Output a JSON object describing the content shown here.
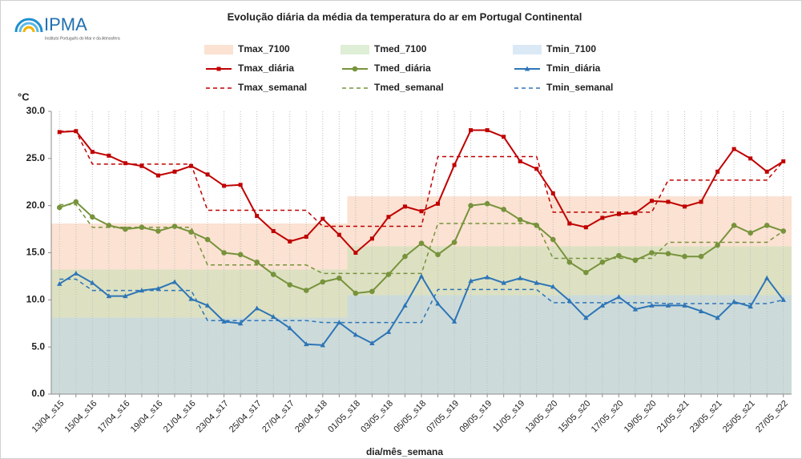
{
  "logo": {
    "name": "IPMA",
    "subtitle": "Instituto Português do Mar e da Atmosfera"
  },
  "chart_data": {
    "type": "line",
    "title": "Evolução diária da média da temperatura do ar em Portugal Continental",
    "y_label": "°C",
    "x_label": "dia/mês_semana",
    "categories": [
      "13/04_s15",
      null,
      "15/04_s16",
      null,
      "17/04_s16",
      null,
      "19/04_s16",
      null,
      "21/04_s16",
      null,
      "23/04_s17",
      null,
      "25/04_s17",
      null,
      "27/04_s17",
      null,
      "29/04_s18",
      null,
      "01/05_s18",
      null,
      "03/05_s18",
      null,
      "05/05_s18",
      null,
      "07/05_s19",
      null,
      "09/05_s19",
      null,
      "11/05_s19",
      null,
      "13/05_s20",
      null,
      "15/05_s20",
      null,
      "17/05_s20",
      null,
      "19/05_s20",
      null,
      "21/05_s21",
      null,
      "23/05_s21",
      null,
      "25/05_s21",
      null,
      "27/05_s22"
    ],
    "ylim": [
      0,
      30
    ],
    "yticks": [
      {
        "value": 0,
        "label": "0.0"
      },
      {
        "value": 5,
        "label": "5.0"
      },
      {
        "value": 10,
        "label": "10.0"
      },
      {
        "value": 15,
        "label": "15.0"
      },
      {
        "value": 20,
        "label": "20.0"
      },
      {
        "value": 25,
        "label": "25.0"
      },
      {
        "value": 30,
        "label": "30.0"
      }
    ],
    "grid": true,
    "series": [
      {
        "name": "Tmax_7100",
        "style": "band",
        "color": "#f8cbad",
        "values": [
          18.1,
          18.1,
          18.1,
          18.1,
          18.1,
          18.1,
          18.1,
          18.1,
          18.1,
          18.1,
          18.1,
          18.1,
          18.1,
          18.1,
          18.1,
          18.1,
          18.1,
          18.1,
          21.0,
          21.0,
          21.0,
          21.0,
          21.0,
          21.0,
          21.0,
          21.0,
          21.0,
          21.0,
          21.0,
          21.0,
          21.0,
          21.0,
          21.0,
          21.0,
          21.0,
          21.0,
          21.0,
          21.0,
          21.0,
          21.0,
          21.0,
          21.0,
          21.0,
          21.0,
          21.0
        ]
      },
      {
        "name": "Tmed_7100",
        "style": "band",
        "color": "#c5e0b4",
        "values": [
          13.2,
          13.2,
          13.2,
          13.2,
          13.2,
          13.2,
          13.2,
          13.2,
          13.2,
          13.2,
          13.2,
          13.2,
          13.2,
          13.2,
          13.2,
          13.2,
          13.2,
          13.2,
          15.7,
          15.7,
          15.7,
          15.7,
          15.7,
          15.7,
          15.7,
          15.7,
          15.7,
          15.7,
          15.7,
          15.7,
          15.7,
          15.7,
          15.7,
          15.7,
          15.7,
          15.7,
          15.7,
          15.7,
          15.7,
          15.7,
          15.7,
          15.7,
          15.7,
          15.7,
          15.7
        ]
      },
      {
        "name": "Tmin_7100",
        "style": "band",
        "color": "#bdd7ee",
        "values": [
          8.1,
          8.1,
          8.1,
          8.1,
          8.1,
          8.1,
          8.1,
          8.1,
          8.1,
          8.1,
          8.1,
          8.1,
          8.1,
          8.1,
          8.1,
          8.1,
          8.1,
          8.1,
          10.5,
          10.5,
          10.5,
          10.5,
          10.5,
          10.5,
          10.5,
          10.5,
          10.5,
          10.5,
          10.5,
          10.5,
          10.5,
          10.5,
          10.5,
          10.5,
          10.5,
          10.5,
          10.5,
          10.5,
          10.5,
          10.5,
          10.5,
          10.5,
          10.5,
          10.5,
          10.5
        ]
      },
      {
        "name": "Tmax_diária",
        "style": "line",
        "marker": "square",
        "color": "#c00000",
        "values": [
          27.8,
          27.9,
          25.7,
          25.3,
          24.5,
          24.2,
          23.2,
          23.6,
          24.2,
          23.3,
          22.1,
          22.2,
          18.9,
          17.3,
          16.2,
          16.7,
          18.6,
          16.9,
          15.0,
          16.5,
          18.8,
          19.9,
          19.4,
          20.2,
          24.3,
          28.0,
          28.0,
          27.3,
          24.7,
          23.9,
          21.3,
          18.1,
          17.7,
          18.7,
          19.1,
          19.2,
          20.5,
          20.4,
          19.9,
          20.4,
          23.6,
          26.0,
          25.0,
          23.6,
          24.7
        ]
      },
      {
        "name": "Tmed_diária",
        "style": "line",
        "marker": "circle",
        "color": "#77933c",
        "values": [
          19.8,
          20.4,
          18.8,
          17.9,
          17.5,
          17.7,
          17.3,
          17.8,
          17.2,
          16.4,
          15.0,
          14.8,
          14.0,
          12.7,
          11.6,
          11.0,
          11.9,
          12.3,
          10.7,
          10.9,
          12.7,
          14.6,
          16.0,
          14.8,
          16.1,
          20.0,
          20.2,
          19.6,
          18.5,
          17.9,
          16.4,
          14.0,
          12.9,
          14.0,
          14.7,
          14.2,
          15.0,
          14.9,
          14.6,
          14.6,
          15.8,
          17.9,
          17.1,
          17.9,
          17.3
        ]
      },
      {
        "name": "Tmin_diária",
        "style": "line",
        "marker": "triangle",
        "color": "#2e75b6",
        "values": [
          11.7,
          12.8,
          11.8,
          10.4,
          10.4,
          11.0,
          11.2,
          11.9,
          10.1,
          9.4,
          7.7,
          7.5,
          9.1,
          8.2,
          7.0,
          5.3,
          5.2,
          7.6,
          6.3,
          5.4,
          6.6,
          9.4,
          12.5,
          9.6,
          7.7,
          12.0,
          12.4,
          11.8,
          12.3,
          11.8,
          11.4,
          9.9,
          8.1,
          9.4,
          10.3,
          9.0,
          9.4,
          9.4,
          9.4,
          8.8,
          8.1,
          9.8,
          9.3,
          12.3,
          10.0
        ]
      },
      {
        "name": "Tmax_semanal",
        "style": "dashed",
        "color": "#c00000",
        "values": [
          27.9,
          27.9,
          24.4,
          24.4,
          24.4,
          24.4,
          24.4,
          24.4,
          24.4,
          19.5,
          19.5,
          19.5,
          19.5,
          19.5,
          19.5,
          19.5,
          17.8,
          17.8,
          17.8,
          17.8,
          17.8,
          17.8,
          17.8,
          25.2,
          25.2,
          25.2,
          25.2,
          25.2,
          25.2,
          25.2,
          19.3,
          19.3,
          19.3,
          19.3,
          19.3,
          19.3,
          19.3,
          22.7,
          22.7,
          22.7,
          22.7,
          22.7,
          22.7,
          22.7,
          24.7
        ]
      },
      {
        "name": "Tmed_semanal",
        "style": "dashed",
        "color": "#77933c",
        "values": [
          20.1,
          20.1,
          17.7,
          17.7,
          17.7,
          17.7,
          17.7,
          17.7,
          17.7,
          13.7,
          13.7,
          13.7,
          13.7,
          13.7,
          13.7,
          13.7,
          12.8,
          12.8,
          12.8,
          12.8,
          12.8,
          12.8,
          12.8,
          18.1,
          18.1,
          18.1,
          18.1,
          18.1,
          18.1,
          18.1,
          14.4,
          14.4,
          14.4,
          14.4,
          14.4,
          14.4,
          14.4,
          16.1,
          16.1,
          16.1,
          16.1,
          16.1,
          16.1,
          16.1,
          17.3
        ]
      },
      {
        "name": "Tmin_semanal",
        "style": "dashed",
        "color": "#2e75b6",
        "values": [
          12.2,
          12.2,
          11.0,
          11.0,
          11.0,
          11.0,
          11.0,
          11.0,
          11.0,
          7.8,
          7.8,
          7.8,
          7.8,
          7.8,
          7.8,
          7.8,
          7.6,
          7.6,
          7.6,
          7.6,
          7.6,
          7.6,
          7.6,
          11.1,
          11.1,
          11.1,
          11.1,
          11.1,
          11.1,
          11.1,
          9.7,
          9.7,
          9.7,
          9.7,
          9.7,
          9.7,
          9.7,
          9.6,
          9.6,
          9.6,
          9.6,
          9.6,
          9.6,
          9.6,
          10.0
        ]
      }
    ]
  }
}
